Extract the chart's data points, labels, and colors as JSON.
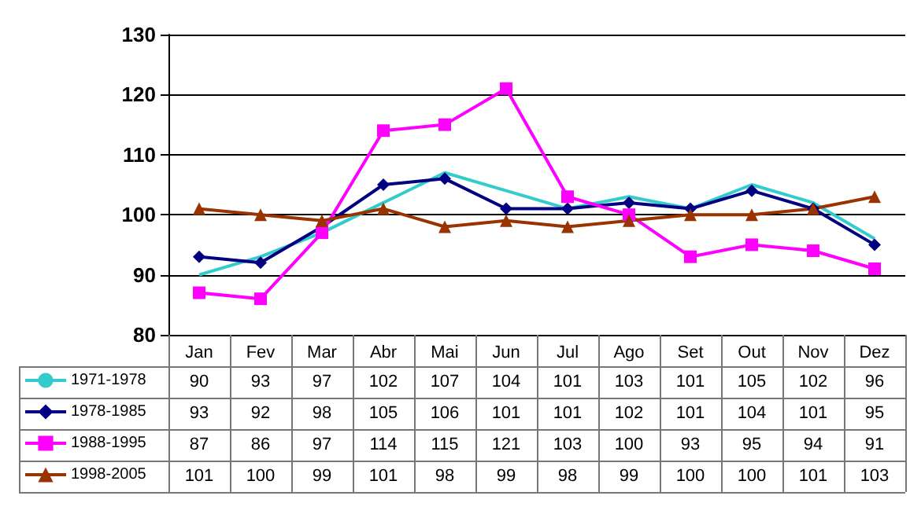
{
  "chart_data": {
    "type": "line",
    "categories": [
      "Jan",
      "Fev",
      "Mar",
      "Abr",
      "Mai",
      "Jun",
      "Jul",
      "Ago",
      "Set",
      "Out",
      "Nov",
      "Dez"
    ],
    "ylim": [
      80,
      130
    ],
    "yticks": [
      80,
      90,
      100,
      110,
      120,
      130
    ],
    "grid": "y",
    "legend": "bottom left",
    "data_labels": true,
    "series": [
      {
        "name": "1971-1978",
        "color": "#33cccc",
        "marker": "none",
        "values": [
          90,
          93,
          97,
          102,
          107,
          104,
          101,
          103,
          101,
          105,
          102,
          96
        ]
      },
      {
        "name": "1978-1985",
        "color": "#000080",
        "marker": "diamond",
        "values": [
          93,
          92,
          98,
          105,
          106,
          101,
          101,
          102,
          101,
          104,
          101,
          95
        ]
      },
      {
        "name": "1988-1995",
        "color": "#ff00ff",
        "marker": "square",
        "values": [
          87,
          86,
          97,
          114,
          115,
          121,
          103,
          100,
          93,
          95,
          94,
          91
        ]
      },
      {
        "name": "1998-2005",
        "color": "#993300",
        "marker": "triangle",
        "values": [
          101,
          100,
          99,
          101,
          98,
          99,
          98,
          99,
          100,
          100,
          101,
          103
        ]
      }
    ]
  }
}
